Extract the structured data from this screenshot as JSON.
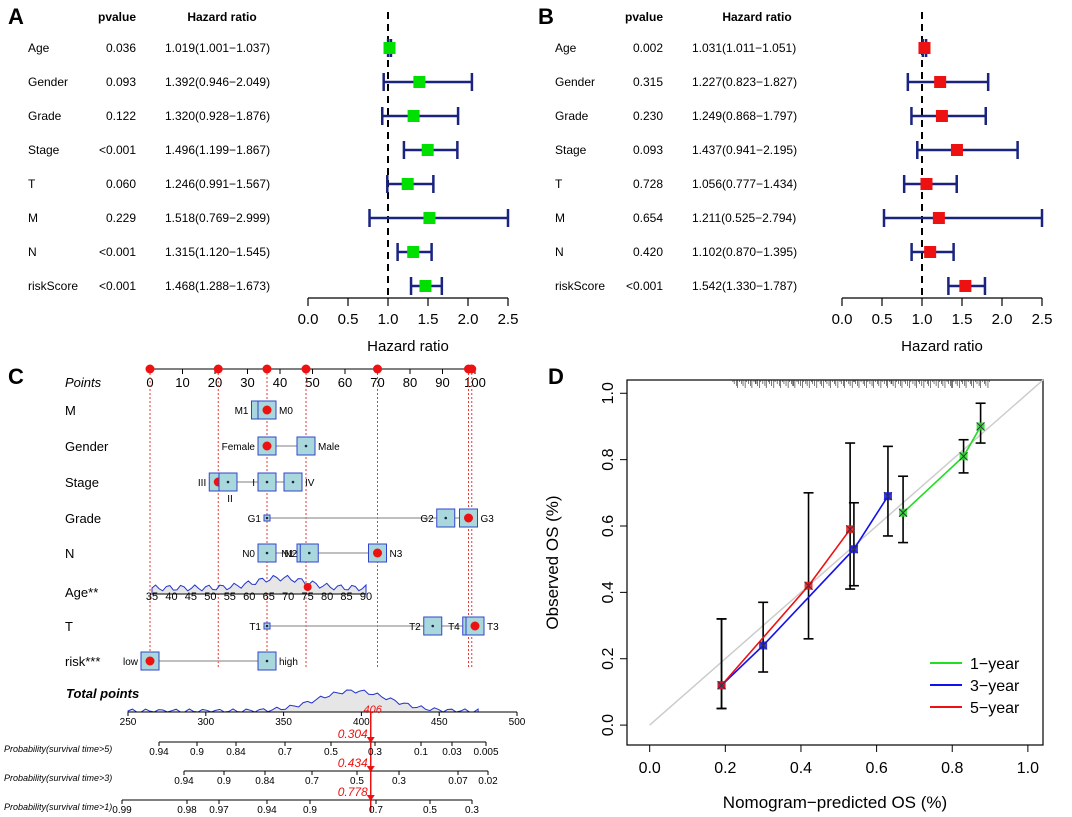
{
  "chart_data": [
    {
      "panel": "A",
      "type": "forest",
      "header_pvalue": "pvalue",
      "header_hr": "Hazard ratio",
      "xlabel": "Hazard ratio",
      "xlim": [
        0,
        2.5
      ],
      "ticks": [
        "0.0",
        "0.5",
        "1.0",
        "1.5",
        "2.0",
        "2.5"
      ],
      "reference": 1.0,
      "marker_color": "#00e000",
      "rows": [
        {
          "name": "Age",
          "p": "0.036",
          "text": "1.019(1.001−1.037)",
          "hr": 1.019,
          "lo": 1.001,
          "hi": 1.037
        },
        {
          "name": "Gender",
          "p": "0.093",
          "text": "1.392(0.946−2.049)",
          "hr": 1.392,
          "lo": 0.946,
          "hi": 2.049
        },
        {
          "name": "Grade",
          "p": "0.122",
          "text": "1.320(0.928−1.876)",
          "hr": 1.32,
          "lo": 0.928,
          "hi": 1.876
        },
        {
          "name": "Stage",
          "p": "<0.001",
          "text": "1.496(1.199−1.867)",
          "hr": 1.496,
          "lo": 1.199,
          "hi": 1.867
        },
        {
          "name": "T",
          "p": "0.060",
          "text": "1.246(0.991−1.567)",
          "hr": 1.246,
          "lo": 0.991,
          "hi": 1.567
        },
        {
          "name": "M",
          "p": "0.229",
          "text": "1.518(0.769−2.999)",
          "hr": 1.518,
          "lo": 0.769,
          "hi": 2.999
        },
        {
          "name": "N",
          "p": "<0.001",
          "text": "1.315(1.120−1.545)",
          "hr": 1.315,
          "lo": 1.12,
          "hi": 1.545
        },
        {
          "name": "riskScore",
          "p": "<0.001",
          "text": "1.468(1.288−1.673)",
          "hr": 1.468,
          "lo": 1.288,
          "hi": 1.673
        }
      ]
    },
    {
      "panel": "B",
      "type": "forest",
      "header_pvalue": "pvalue",
      "header_hr": "Hazard ratio",
      "xlabel": "Hazard ratio",
      "xlim": [
        0,
        2.5
      ],
      "ticks": [
        "0.0",
        "0.5",
        "1.0",
        "1.5",
        "2.0",
        "2.5"
      ],
      "reference": 1.0,
      "marker_color": "#ee1111",
      "rows": [
        {
          "name": "Age",
          "p": "0.002",
          "text": "1.031(1.011−1.051)",
          "hr": 1.031,
          "lo": 1.011,
          "hi": 1.051
        },
        {
          "name": "Gender",
          "p": "0.315",
          "text": "1.227(0.823−1.827)",
          "hr": 1.227,
          "lo": 0.823,
          "hi": 1.827
        },
        {
          "name": "Grade",
          "p": "0.230",
          "text": "1.249(0.868−1.797)",
          "hr": 1.249,
          "lo": 0.868,
          "hi": 1.797
        },
        {
          "name": "Stage",
          "p": "0.093",
          "text": "1.437(0.941−2.195)",
          "hr": 1.437,
          "lo": 0.941,
          "hi": 2.195
        },
        {
          "name": "T",
          "p": "0.728",
          "text": "1.056(0.777−1.434)",
          "hr": 1.056,
          "lo": 0.777,
          "hi": 1.434
        },
        {
          "name": "M",
          "p": "0.654",
          "text": "1.211(0.525−2.794)",
          "hr": 1.211,
          "lo": 0.525,
          "hi": 2.794
        },
        {
          "name": "N",
          "p": "0.420",
          "text": "1.102(0.870−1.395)",
          "hr": 1.102,
          "lo": 0.87,
          "hi": 1.395
        },
        {
          "name": "riskScore",
          "p": "<0.001",
          "text": "1.542(1.330−1.787)",
          "hr": 1.542,
          "lo": 1.33,
          "hi": 1.787
        }
      ]
    },
    {
      "panel": "C",
      "type": "nomogram",
      "points_label": "Points",
      "points_ticks": [
        0,
        10,
        20,
        30,
        40,
        50,
        60,
        70,
        80,
        90,
        100
      ],
      "selected_points": [
        0,
        21,
        36,
        48,
        70,
        98,
        99
      ],
      "variables": [
        {
          "name": "M",
          "levels": [
            {
              "label": "M1",
              "points": 34
            },
            {
              "label": "M0",
              "points": 36
            }
          ],
          "selected": "M0"
        },
        {
          "name": "Gender",
          "levels": [
            {
              "label": "Female",
              "points": 36
            },
            {
              "label": "Male",
              "points": 48
            }
          ],
          "selected": "Female"
        },
        {
          "name": "Stage",
          "levels": [
            {
              "label": "III",
              "points": 21
            },
            {
              "label": "II",
              "points": 24
            },
            {
              "label": "I",
              "points": 36
            },
            {
              "label": "IV",
              "points": 44
            }
          ],
          "selected": "III"
        },
        {
          "name": "Grade",
          "levels": [
            {
              "label": "G1",
              "points": 36
            },
            {
              "label": "G2",
              "points": 91
            },
            {
              "label": "G3",
              "points": 98
            }
          ],
          "selected": "G3"
        },
        {
          "name": "N",
          "levels": [
            {
              "label": "N0",
              "points": 36
            },
            {
              "label": "N1",
              "points": 48
            },
            {
              "label": "N2",
              "points": 49
            },
            {
              "label": "N3",
              "points": 70
            }
          ],
          "selected": "N3"
        },
        {
          "name": "Age**",
          "type": "continuous",
          "ticks": [
            35,
            40,
            45,
            50,
            55,
            60,
            65,
            70,
            75,
            80,
            85,
            90
          ],
          "selected_value": 75
        },
        {
          "name": "T",
          "levels": [
            {
              "label": "T1",
              "points": 36
            },
            {
              "label": "T2",
              "points": 87
            },
            {
              "label": "T4",
              "points": 99
            },
            {
              "label": "T3",
              "points": 100
            }
          ],
          "selected": "T3"
        },
        {
          "name": "risk***",
          "levels": [
            {
              "label": "low",
              "points": 0
            },
            {
              "label": "high",
              "points": 36
            }
          ],
          "selected": "low"
        }
      ],
      "total_points_label": "Total points",
      "total_points_ticks": [
        250,
        300,
        350,
        400,
        450,
        500
      ],
      "total_points_value": "406",
      "total_points": 406,
      "probabilities": [
        {
          "label": "Probability(survival time>5)",
          "ticks": [
            "0.94",
            "0.9",
            "0.84",
            "0.7",
            "0.5",
            "0.3",
            "0.1",
            "0.03",
            "0.005"
          ],
          "value": "0.304"
        },
        {
          "label": "Probability(survival time>3)",
          "ticks": [
            "0.94",
            "0.9",
            "0.84",
            "0.7",
            "0.5",
            "0.3",
            "0.07",
            "0.02"
          ],
          "value": "0.434"
        },
        {
          "label": "Probability(survival time>1)",
          "ticks": [
            "0.99",
            "0.98",
            "0.97",
            "0.94",
            "0.9",
            "0.7",
            "0.5",
            "0.3"
          ],
          "value": "0.778"
        }
      ]
    },
    {
      "panel": "D",
      "type": "calibration",
      "xlabel": "Nomogram−predicted OS (%)",
      "ylabel": "Observed OS (%)",
      "xlim": [
        0,
        1
      ],
      "ylim": [
        0,
        1
      ],
      "x_ticks": [
        "0.0",
        "0.2",
        "0.4",
        "0.6",
        "0.8",
        "1.0"
      ],
      "y_ticks": [
        "0.0",
        "0.2",
        "0.4",
        "0.6",
        "0.8",
        "1.0"
      ],
      "series": [
        {
          "name": "1−year",
          "color": "#22dd22",
          "points": [
            [
              0.67,
              0.64
            ],
            [
              0.83,
              0.81
            ],
            [
              0.875,
              0.9
            ]
          ],
          "ci": [
            [
              0.55,
              0.75
            ],
            [
              0.76,
              0.86
            ],
            [
              0.85,
              0.97
            ]
          ]
        },
        {
          "name": "3−year",
          "color": "#1111ee",
          "points": [
            [
              0.19,
              0.12
            ],
            [
              0.3,
              0.24
            ],
            [
              0.54,
              0.53
            ],
            [
              0.63,
              0.69
            ]
          ],
          "ci": [
            [
              0.05,
              0.32
            ],
            [
              0.16,
              0.37
            ],
            [
              0.42,
              0.67
            ],
            [
              0.57,
              0.84
            ]
          ]
        },
        {
          "name": "5−year",
          "color": "#ee1111",
          "points": [
            [
              0.19,
              0.12
            ],
            [
              0.42,
              0.42
            ],
            [
              0.53,
              0.59
            ]
          ],
          "ci": [
            [
              0.05,
              0.32
            ],
            [
              0.26,
              0.7
            ],
            [
              0.41,
              0.85
            ]
          ]
        }
      ]
    }
  ]
}
